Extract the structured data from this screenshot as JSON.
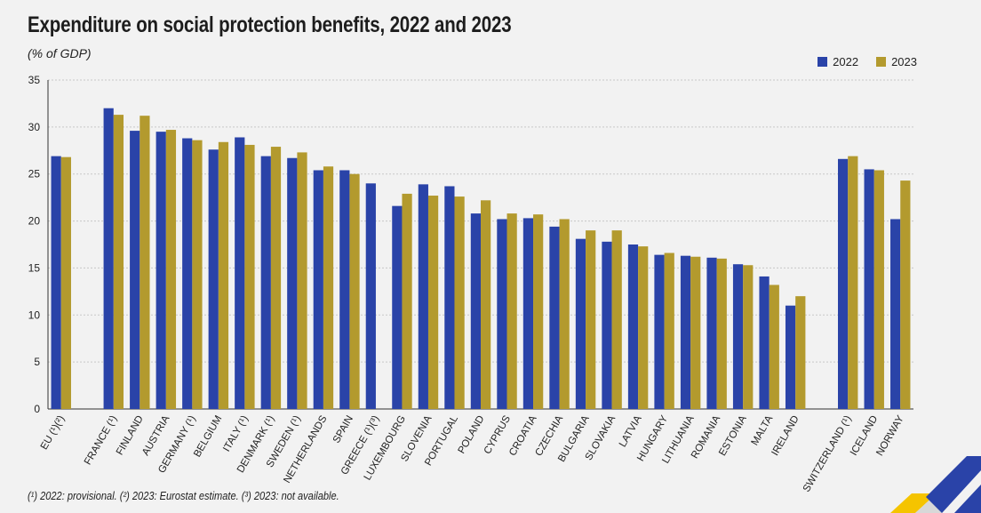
{
  "title": "Expenditure on social protection benefits, 2022 and 2023",
  "unit": "(% of GDP)",
  "footnote": "(¹) 2022: provisional. (²) 2023: Eurostat estimate. (³) 2023: not available.",
  "colors": {
    "s2022": "#2a43a8",
    "s2023": "#b39a2e",
    "grid": "#c8c8c8",
    "axis": "#333333"
  },
  "chart_data": {
    "type": "bar",
    "title": "Expenditure on social protection benefits, 2022 and 2023",
    "ylabel": "(% of GDP)",
    "xlabel": "",
    "ylim": [
      0,
      35
    ],
    "yticks": [
      0,
      5,
      10,
      15,
      20,
      25,
      30,
      35
    ],
    "grid": true,
    "legend_position": "top-right",
    "groups": [
      {
        "categories": [
          "EU (¹)(²)"
        ]
      },
      {
        "categories": [
          "FRANCE (¹)",
          "FINLAND",
          "AUSTRIA",
          "GERMANY (¹)",
          "BELGIUM",
          "ITALY (¹)",
          "DENMARK (¹)",
          "SWEDEN (¹)",
          "NETHERLANDS",
          "SPAIN",
          "GREECE (¹)(³)",
          "LUXEMBOURG",
          "SLOVENIA",
          "PORTUGAL",
          "POLAND",
          "CYPRUS",
          "CROATIA",
          "CZECHIA",
          "BULGARIA",
          "SLOVAKIA",
          "LATVIA",
          "HUNGARY",
          "LITHUANIA",
          "ROMANIA",
          "ESTONIA",
          "MALTA",
          "IRELAND"
        ]
      },
      {
        "categories": [
          "SWITZERLAND (¹)",
          "ICELAND",
          "NORWAY"
        ]
      }
    ],
    "categories": [
      "EU (¹)(²)",
      "FRANCE (¹)",
      "FINLAND",
      "AUSTRIA",
      "GERMANY (¹)",
      "BELGIUM",
      "ITALY (¹)",
      "DENMARK (¹)",
      "SWEDEN (¹)",
      "NETHERLANDS",
      "SPAIN",
      "GREECE (¹)(³)",
      "LUXEMBOURG",
      "SLOVENIA",
      "PORTUGAL",
      "POLAND",
      "CYPRUS",
      "CROATIA",
      "CZECHIA",
      "BULGARIA",
      "SLOVAKIA",
      "LATVIA",
      "HUNGARY",
      "LITHUANIA",
      "ROMANIA",
      "ESTONIA",
      "MALTA",
      "IRELAND",
      "SWITZERLAND (¹)",
      "ICELAND",
      "NORWAY"
    ],
    "series": [
      {
        "name": "2022",
        "color": "#2a43a8",
        "values": [
          26.9,
          32.0,
          29.6,
          29.5,
          28.8,
          27.6,
          28.9,
          26.9,
          26.7,
          25.4,
          25.4,
          24.0,
          21.6,
          23.9,
          23.7,
          20.8,
          20.2,
          20.3,
          19.4,
          18.1,
          17.8,
          17.5,
          16.4,
          16.3,
          16.1,
          15.4,
          14.1,
          11.0,
          26.6,
          25.5,
          20.2
        ]
      },
      {
        "name": "2023",
        "color": "#b39a2e",
        "values": [
          26.8,
          31.3,
          31.2,
          29.7,
          28.6,
          28.4,
          28.1,
          27.9,
          27.3,
          25.8,
          25.0,
          null,
          22.9,
          22.7,
          22.6,
          22.2,
          20.8,
          20.7,
          20.2,
          19.0,
          19.0,
          17.3,
          16.6,
          16.2,
          16.0,
          15.3,
          13.2,
          12.0,
          26.9,
          25.4,
          24.3
        ]
      }
    ]
  }
}
